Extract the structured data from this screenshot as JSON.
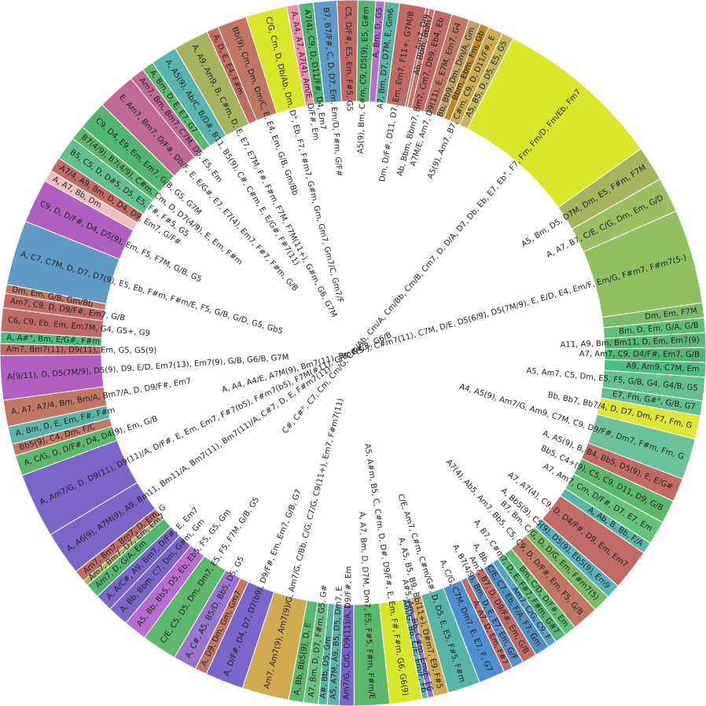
{
  "chart_data": {
    "type": "pie",
    "title": "",
    "center_label": "C#, C#°, C7, Cm, Cm/G, Cm/Ab, Cm/A, Cm/Bb, Cm/B, Cm7, D, D/A, D7, Db, Eb, E7, Eb°, F7, Fm, Fm/D, Fm/Eb, Fm7",
    "slices": [
      {
        "label": "C#, C#°, C7, Cm, Cm/G, Cm/Ab, Cm/A, Cm/Bb, Cm/B, Cm7, D, D/A, D7, Db, Eb, E7, Eb°, F7, Fm, Fm/D, Fm/Eb, Fm7",
        "value": 5.7,
        "color": "#d9e62a"
      },
      {
        "label": "A5, Bm, D5, D7M, Dm, E5, F#m, F7M",
        "value": 1.2,
        "color": "#a6b35f"
      },
      {
        "label": "A, A7, B7, C/E, C/G, Dm, Em, G/D",
        "value": 1.2,
        "color": "#9dbf63"
      },
      {
        "label": "A, A4, A4/E, A7M(9), Bm7(11), Bm7(5-), C#m7(11), C7M, D/E, D5(6/9), D5(7M/9), E, E/D, E4, Em/F, Em/G, F#m7, F#m7(5-)",
        "value": 3.2,
        "color": "#91c063"
      },
      {
        "label": "Dm, Em, F7M",
        "value": 0.5,
        "color": "#7dbb6c"
      },
      {
        "label": "Bm, D, Em, G/A, G/B",
        "value": 0.5,
        "color": "#5fbf74"
      },
      {
        "label": "A11, A9, Bm, Bm11, D, Em, Em7(9)",
        "value": 0.5,
        "color": "#59b873"
      },
      {
        "label": "A7, Am7, C9, D4/F#, Em7, G/B",
        "value": 0.5,
        "color": "#52b572"
      },
      {
        "label": "A9, Am9, C7M, Em",
        "value": 0.5,
        "color": "#4ebd80"
      },
      {
        "label": "A5, Am7, C5, Dm, E5, F5, G/B, G4, G4/B, G5",
        "value": 0.8,
        "color": "#67c08f"
      },
      {
        "label": "E7, Fm, G#°, G/B, G7",
        "value": 0.5,
        "color": "#62bf90"
      },
      {
        "label": "Bb, Bb7, Bb7/4, D, D7, Dm, F7, Fm, G",
        "value": 0.8,
        "color": "#dfe63a"
      },
      {
        "label": "A4, A5(9), Am7/G, Am9, C7M, C9, D9/F#, Dm7, F#m, Fm, G",
        "value": 1.4,
        "color": "#6cc29b"
      },
      {
        "label": "A, A5(9), B, B4, Bb5, D5(9), E, E/G#",
        "value": 0.8,
        "color": "#c06b66"
      },
      {
        "label": "Bb5, C4+(9), C5, C9, D11, D9, G/B",
        "value": 0.8,
        "color": "#5cb86d"
      },
      {
        "label": "A7, Am7, Cm, D/F#, D7, E7, Em",
        "value": 0.8,
        "color": "#65c17c"
      },
      {
        "label": "A, Ab, B, Bb, F/A",
        "value": 0.4,
        "color": "#5ab7a8"
      },
      {
        "label": "A7, A7(4), C9, D, D4/F#, D9, Em, Em7",
        "value": 1.4,
        "color": "#c06b66"
      },
      {
        "label": "A, Bb5(9), C5(9), D5(9), Eb5(9), Em9",
        "value": 0.5,
        "color": "#5ab2c0"
      },
      {
        "label": "B7, Bm, C/G, D, D/G, Em, F#m7(5)",
        "value": 0.6,
        "color": "#7abb67"
      },
      {
        "label": "A7(4), Ab5, Am7, Bb5, C5, C9, D, D/F#, Em, F5, G/B",
        "value": 0.9,
        "color": "#c07864"
      },
      {
        "label": "Bm, C/D, D/F#, Em",
        "value": 0.4,
        "color": "#5fbf74"
      },
      {
        "label": "A, B7, C#m7, D, E, F#7, F#m, G#7",
        "value": 0.4,
        "color": "#55b576"
      },
      {
        "label": "Am7, C/G, C9, F",
        "value": 0.3,
        "color": "#5a9fc8"
      },
      {
        "label": "A, Bb, C/E, C7, Eb, F/A, F7, Gm",
        "value": 0.5,
        "color": "#4f8fc0"
      },
      {
        "label": "Am7, B7, D, D9/F#, Em, G/B",
        "value": 0.5,
        "color": "#c06b66"
      },
      {
        "label": "A, B7(4/9), Bm, D, E, E7, Em, G/F",
        "value": 0.4,
        "color": "#5a8fc8"
      },
      {
        "label": "A, A7, D, Em, F#7",
        "value": 0.3,
        "color": "#c06b66"
      },
      {
        "label": "A, C/G, C7M, Dm7, E, E7, F, G7",
        "value": 0.9,
        "color": "#4f8fd0"
      },
      {
        "label": "C/E, Am7, C#m, C#m/G#, D, D5, E, E5, F#5, F#m",
        "value": 1.1,
        "color": "#5ab5a8"
      },
      {
        "label": "A, A5, B5, B9, Bb(11+), D#m7, E9, F#5",
        "value": 0.5,
        "color": "#d0ab52"
      },
      {
        "label": "A#5, Am, Bb, C#m, Em/F, F6",
        "value": 0.2,
        "color": "#8a75d0"
      },
      {
        "label": "Am/G, Bb, C/E, Em/F, F6",
        "value": 0.2,
        "color": "#5ab5a8"
      },
      {
        "label": "A5, A#m, B5, C, C#m, D, D#, D9/F#, E, Em, F#, F#m, G6, G6(9)",
        "value": 1.1,
        "color": "#d9e62a"
      },
      {
        "label": "A, A7, Bm, D, D7M, Dm7, E5, F#5, F#m, F#m/E",
        "value": 1.2,
        "color": "#5cb86d"
      },
      {
        "label": "Am7/G, C/G, D9(11)/A, D9/F#, Em",
        "value": 0.5,
        "color": "#7a65c8"
      },
      {
        "label": "A5, A7M, A9, B5, D5, Dm7, E",
        "value": 0.4,
        "color": "#5ab5a8"
      },
      {
        "label": "A#, Bb, D5, Gm",
        "value": 0.3,
        "color": "#5ab5a8"
      },
      {
        "label": "A7, Bm, D, D7, F#m, G5, G#",
        "value": 0.5,
        "color": "#6cc283"
      },
      {
        "label": "A, Bb, Bb5(9), D, E",
        "value": 0.5,
        "color": "#5cb86d"
      },
      {
        "label": "Am7, Am7(9), Am7(9)/G, Am7/G, C/Bb, C/G, C7/G, C9(11+), Em7, F#m7(11)",
        "value": 1.6,
        "color": "#d0ab52"
      },
      {
        "label": "A, D/F#, D4, D7, D7(b9), D9/F#, Em, Em7, G/B, G7",
        "value": 1.3,
        "color": "#7a65c8"
      },
      {
        "label": "A, D9, Dm, Gm, Gm7",
        "value": 0.4,
        "color": "#c07864"
      },
      {
        "label": "A, C#, A5, B5/D, Bb5, D5, G5",
        "value": 0.8,
        "color": "#9a75d0"
      },
      {
        "label": "C/E, C5, D5, Dm, Dm7, E5, F5, F7M, G/B, G5",
        "value": 1.2,
        "color": "#5cb86d"
      },
      {
        "label": "A5, Bb, Bb5, D5, Eb, Eb5, F5, G5, Gm",
        "value": 0.8,
        "color": "#b86ed0"
      },
      {
        "label": "A, Bb, Bbm, C7, Dm, G#m, Gm",
        "value": 0.7,
        "color": "#7a65c8"
      },
      {
        "label": "A, A/C#, A9, Bm7, D/F#, E, Em7",
        "value": 0.6,
        "color": "#7a65c8"
      },
      {
        "label": "Am7, D, G/A, Em",
        "value": 0.5,
        "color": "#52b572"
      },
      {
        "label": "Am7, Bm7, D7, Em, Em7",
        "value": 0.2,
        "color": "#a6b35f"
      },
      {
        "label": "Am7, Bm7, Bm7, D, Em, G",
        "value": 0.4,
        "color": "#c06b66"
      },
      {
        "label": "A, A6(9), A7M(9), A9, Bm11, Bm11/A, Bm7(11), Bm7(11)/A, C#7, D, E, F#m7(11)",
        "value": 1.5,
        "color": "#7a65c8"
      },
      {
        "label": "A, Am7/G, D, D9(11), D9(11)/A, D/F#, E, Em, Em7, F#7(b5), F#m7(b5), F7M(#11), G/B, G4/B, G6/B",
        "value": 2.2,
        "color": "#7a65c8"
      },
      {
        "label": "A, C/G, D, D/F#, D4, D4(9), Em, G/B",
        "value": 0.7,
        "color": "#5cb86d"
      },
      {
        "label": "Bb5(9), C4, Dm, F/C",
        "value": 0.4,
        "color": "#c07864"
      },
      {
        "label": "A, Bm, D, E, Em, F#, F#m",
        "value": 0.6,
        "color": "#5ab5a8"
      },
      {
        "label": "A, A7, A7/4, Bm, Bm/A, Bm7/A, D, D9/F#, Em7",
        "value": 0.9,
        "color": "#c07864"
      },
      {
        "label": "A(9/11), D, D5(7M/9), D5(9), D9, E/D, Em7(13), Em7(9), G/B, G6/B, G7M",
        "value": 1.5,
        "color": "#b05ec0"
      },
      {
        "label": "Am7, Bm7(11), D9(11), Em, G5, G5(9)",
        "value": 0.4,
        "color": "#c06b66"
      },
      {
        "label": "A, A#°, Bm, E/G#, F#m",
        "value": 0.4,
        "color": "#4ebd80"
      },
      {
        "label": "C6, C9, Eb, Em, Em7M, G4, G5+, G9",
        "value": 0.8,
        "color": "#c06b66"
      },
      {
        "label": "Am7, C9, D, D9/F#, Em7, G/B",
        "value": 0.5,
        "color": "#c06b66"
      },
      {
        "label": "Dm, Em, G/B, Gm/Bb",
        "value": 0.3,
        "color": "#c07864"
      },
      {
        "label": "A, C7, C7M, D, D7, D7(9), E5, Eb, F#m, F#m/E, F5, G/B, G/D, G5, Gb5",
        "value": 2.2,
        "color": "#5f9bc4"
      },
      {
        "label": "C9, D, D/F#, D4, D5(9), Em, F5, F7M, G/B, G5",
        "value": 1.5,
        "color": "#b05ec0"
      },
      {
        "label": "A, A7, Bb, Dm",
        "value": 0.4,
        "color": "#f0c0c0"
      },
      {
        "label": "A7/4, A9, Bm, D, D4, D9, Em7, G/F#",
        "value": 0.5,
        "color": "#c06b66"
      },
      {
        "label": "B5, C5, D, D#5, D5, E5, F#, F#5, G5",
        "value": 0.8,
        "color": "#62bf90"
      },
      {
        "label": "B7(4/9), B7(4/9), C#m, Cm, D, D7(4/9), E, Em, F#m",
        "value": 0.5,
        "color": "#5cb86d"
      },
      {
        "label": "C9, D4, E9, Em, Em7, G/B, G5, G7M",
        "value": 1.0,
        "color": "#52b572"
      },
      {
        "label": "E, Am7, Bm7, D/F#, Db/F, E, E/G#, E7, E7(4), Em7, F#7, F#m, G/B",
        "value": 1.3,
        "color": "#c06b96"
      },
      {
        "label": "Am7, Bm, Bm7, C7M, D5, E5, Em",
        "value": 0.5,
        "color": "#c06b96"
      },
      {
        "label": "A, Bm, D, E, E7, G7",
        "value": 0.4,
        "color": "#5cb86d"
      },
      {
        "label": "A, A5(9), Ab/C, B/D#, B11, B5(9), C#, C#m, E, E/G#, F#7(11)",
        "value": 0.9,
        "color": "#5ab5b0"
      },
      {
        "label": "A, A9, Am9, B, C#m, D, E, E7, E7M, F#, F#m, F7M, F7M(11+), G#m, G6, G7M",
        "value": 1.2,
        "color": "#a6b35f"
      },
      {
        "label": "A, D, E, E4, F#m",
        "value": 0.4,
        "color": "#c06b66"
      },
      {
        "label": "Bb(9), Cm, Dm, Dm/C, E, E4, Em, G/B, Gm/Bb",
        "value": 1.0,
        "color": "#c07864"
      },
      {
        "label": "C/G, Cm, D, Db/Ab, Dm, D°, Eb, F7, F#m7, G#m, Gm, Gm7, Gm7/C, Gm7/F",
        "value": 1.4,
        "color": "#d9e62a"
      },
      {
        "label": "A, A4, A7, A7(4), Am/E, D/F#, Em",
        "value": 0.4,
        "color": "#f090b0"
      },
      {
        "label": "A7(4), C9, D, D11/F#, D4, Em7",
        "value": 0.5,
        "color": "#52b572"
      },
      {
        "label": "B7, B7/F#, C, D, D7, Em, Em/D, F#m, G/F#",
        "value": 0.8,
        "color": "#5f9bc4"
      },
      {
        "label": "C5, D/F#, E5, Em, F#5, G5",
        "value": 0.7,
        "color": "#c06b66"
      },
      {
        "label": "A5(9), Bm, C#m, C9, D5(9), E5, G#m",
        "value": 0.6,
        "color": "#52b572"
      },
      {
        "label": "A, Bm, D, G5",
        "value": 0.3,
        "color": "#b86ed0"
      },
      {
        "label": "A7, Bm, D7, D7M, E, Gm6",
        "value": 0.5,
        "color": "#5ab5a8"
      },
      {
        "label": "Dm, D/F#, D11, D7, Em, Em7, F11+, G7M/B",
        "value": 0.9,
        "color": "#c06b66"
      },
      {
        "label": "Am7, Dm",
        "value": 0.1,
        "color": "#c06b66"
      },
      {
        "label": "Ab, Bbm, Bbm7",
        "value": 0.2,
        "color": "#c07864"
      },
      {
        "label": "Ab, Bbm, Bbm7, Bm7, Cm7, Db9, Eb4, Eb",
        "value": 0.6,
        "color": "#c06b66"
      },
      {
        "label": "A7M/E, Am7, D9(11), E, E7M, Em7, G4",
        "value": 0.6,
        "color": "#c07864"
      },
      {
        "label": "Bb, Bb9, Dm, Dm/A, Gm",
        "value": 0.4,
        "color": "#c0a064"
      },
      {
        "label": "Bbm, Ebm, Fm, Gb",
        "value": 0.3,
        "color": "#c08a24"
      },
      {
        "label": "A5(9), Am7, B7, C#m, C9, D, D11/F#, E",
        "value": 0.5,
        "color": "#d0ab52"
      },
      {
        "label": "A5, B5, D, D5, E5, G5",
        "value": 0.4,
        "color": "#c8b45e"
      }
    ]
  }
}
